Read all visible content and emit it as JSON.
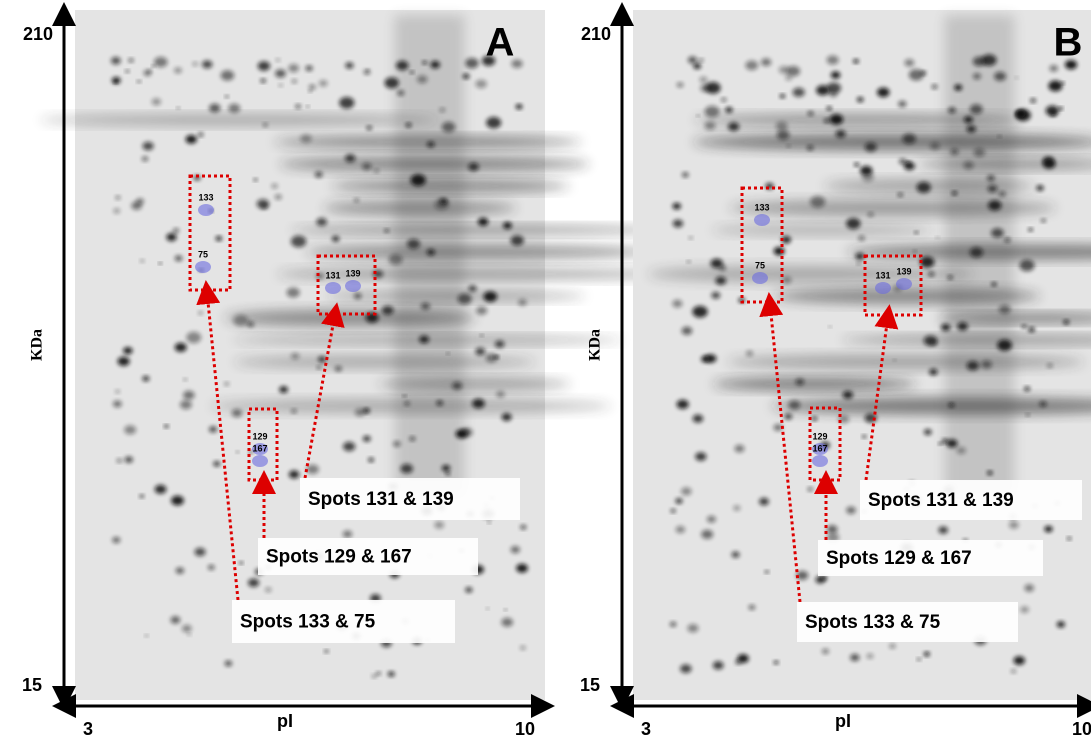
{
  "panels": [
    {
      "letter": "A",
      "y_axis": {
        "label": "KDa",
        "top": 210,
        "bottom": 15
      },
      "x_axis": {
        "label": "pI",
        "left": 3,
        "right": 10
      },
      "spots": [
        133,
        75,
        131,
        139,
        129,
        167
      ],
      "callouts": [
        "Spots 131 & 139",
        "Spots 129 & 167",
        "Spots 133 & 75"
      ]
    },
    {
      "letter": "B",
      "y_axis": {
        "label": "KDa",
        "top": 210,
        "bottom": 15
      },
      "x_axis": {
        "label": "pI",
        "left": 3,
        "right": 10
      },
      "spots": [
        133,
        75,
        131,
        139,
        129,
        167
      ],
      "callouts": [
        "Spots 131 & 139",
        "Spots 129 & 167",
        "Spots 133 & 75"
      ]
    }
  ]
}
